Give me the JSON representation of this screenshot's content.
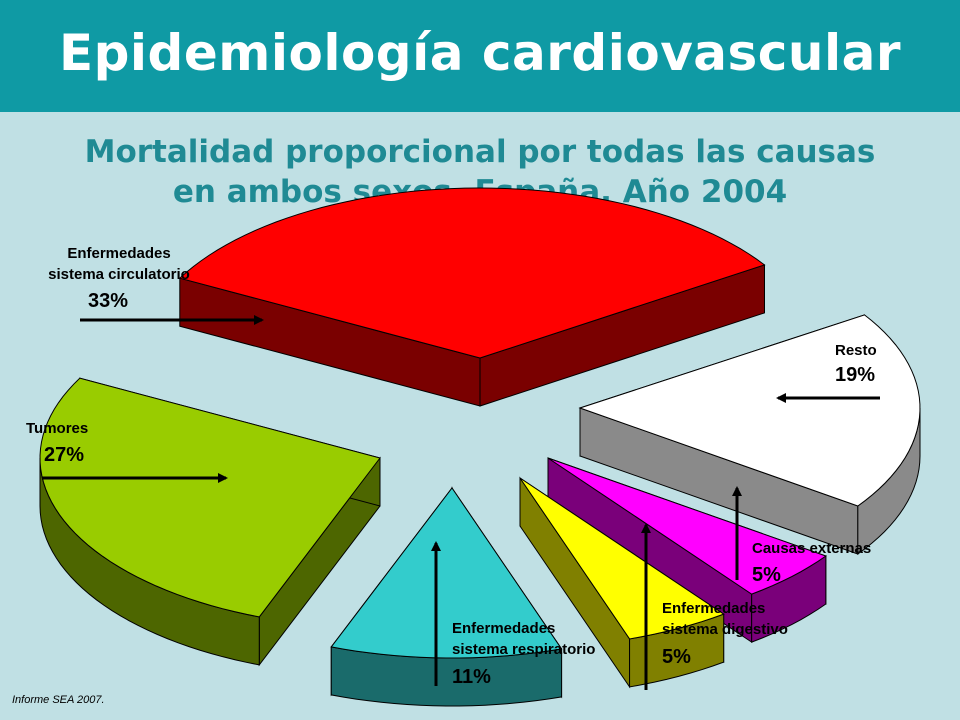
{
  "header": {
    "title": "Epidemiología cardiovascular"
  },
  "subtitle": {
    "line1": "Mortalidad proporcional por todas las causas",
    "line2": "en ambos sexos. España.  Año 2004"
  },
  "source": "Informe SEA 2007.",
  "colors": {
    "header_bg": "#0f9aa4",
    "background": "#c0e0e4",
    "subtitle": "#1f8a94"
  },
  "chart_data": {
    "type": "pie",
    "style": "3d-exploded",
    "title": "Mortalidad proporcional por todas las causas en ambos sexos. España.  Año 2004",
    "unit": "%",
    "slices": [
      {
        "label_line1": "Enfermedades",
        "label_line2": "sistema circulatorio",
        "value": 33,
        "display": "33%",
        "color": "#ff0000",
        "side_color": "#7a0000"
      },
      {
        "label_line1": "Resto",
        "label_line2": "",
        "value": 19,
        "display": "19%",
        "color": "#ffffff",
        "side_color": "#8a8a8a"
      },
      {
        "label_line1": "Causas externas",
        "label_line2": "",
        "value": 5,
        "display": "5%",
        "color": "#ff00ff",
        "side_color": "#7a007a"
      },
      {
        "label_line1": "Enfermedades",
        "label_line2": "sistema digestivo",
        "value": 5,
        "display": "5%",
        "color": "#ffff00",
        "side_color": "#808000"
      },
      {
        "label_line1": "Enfermedades",
        "label_line2": "sistema respiratorio",
        "value": 11,
        "display": "11%",
        "color": "#33cccc",
        "side_color": "#1a6b6b"
      },
      {
        "label_line1": "Tumores",
        "label_line2": "",
        "value": 27,
        "display": "27%",
        "color": "#99cc00",
        "side_color": "#4d6600"
      }
    ]
  }
}
